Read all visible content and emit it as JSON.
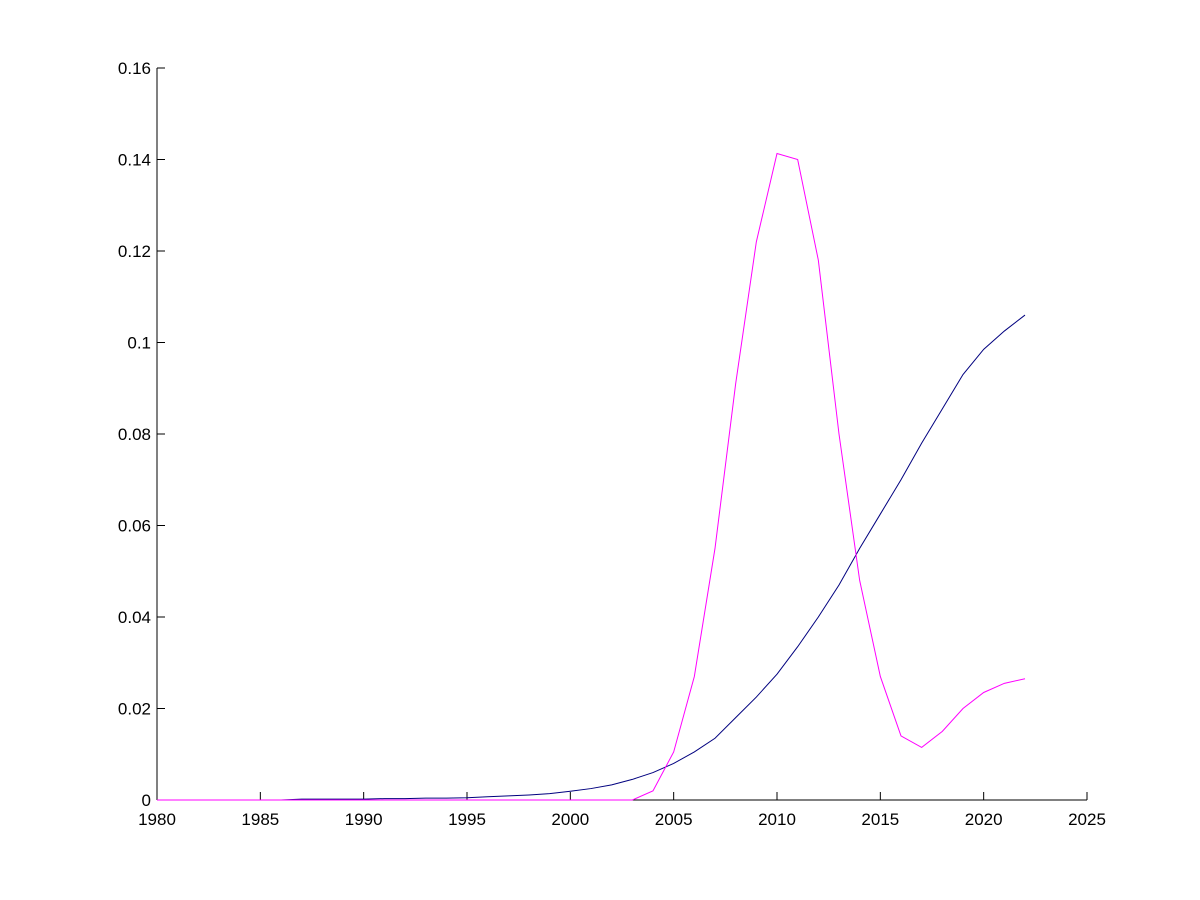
{
  "chart_data": {
    "type": "line",
    "x": [
      1980,
      1981,
      1982,
      1983,
      1984,
      1985,
      1986,
      1987,
      1988,
      1989,
      1990,
      1991,
      1992,
      1993,
      1994,
      1995,
      1996,
      1997,
      1998,
      1999,
      2000,
      2001,
      2002,
      2003,
      2004,
      2005,
      2006,
      2007,
      2008,
      2009,
      2010,
      2011,
      2012,
      2013,
      2014,
      2015,
      2016,
      2017,
      2018,
      2019,
      2020,
      2021,
      2022
    ],
    "series": [
      {
        "color": "#00007f",
        "values": [
          0,
          0,
          0,
          0,
          0,
          0,
          0,
          0.0002,
          0.0002,
          0.0002,
          0.0002,
          0.0003,
          0.0003,
          0.0004,
          0.0004,
          0.0005,
          0.0007,
          0.0009,
          0.0011,
          0.0014,
          0.0019,
          0.0025,
          0.0033,
          0.0045,
          0.006,
          0.008,
          0.0105,
          0.0135,
          0.018,
          0.0225,
          0.0275,
          0.0335,
          0.04,
          0.047,
          0.055,
          0.0625,
          0.07,
          0.078,
          0.0855,
          0.093,
          0.0985,
          0.1025,
          0.106
        ]
      },
      {
        "color": "#ff00ff",
        "values": [
          0,
          0,
          0,
          0,
          0,
          0,
          0,
          0,
          0,
          0,
          0,
          0,
          0,
          0,
          0,
          0,
          0,
          0,
          0,
          0,
          0,
          0,
          0,
          0,
          0.002,
          0.0105,
          0.027,
          0.055,
          0.091,
          0.122,
          0.1413,
          0.14,
          0.118,
          0.08,
          0.048,
          0.027,
          0.014,
          0.0115,
          0.015,
          0.02,
          0.0235,
          0.0255,
          0.0265
        ]
      }
    ],
    "xlim": [
      1980,
      2025
    ],
    "xticks": [
      1980,
      1985,
      1990,
      1995,
      2000,
      2005,
      2010,
      2015,
      2020,
      2025
    ],
    "ylim": [
      0,
      0.16
    ],
    "yticks": [
      0,
      0.02,
      0.04,
      0.06,
      0.08,
      0.1,
      0.12,
      0.14,
      0.16
    ],
    "grid": false
  }
}
